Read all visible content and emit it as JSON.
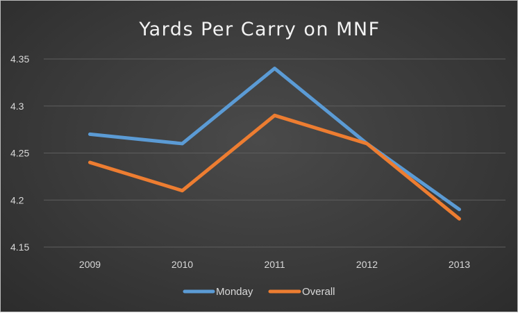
{
  "chart_data": {
    "type": "line",
    "title": "Yards Per Carry on MNF",
    "xlabel": "",
    "ylabel": "",
    "categories": [
      "2009",
      "2010",
      "2011",
      "2012",
      "2013"
    ],
    "yticks": [
      "4.15",
      "4.2",
      "4.25",
      "4.3",
      "4.35"
    ],
    "ylim": [
      4.15,
      4.35
    ],
    "grid": true,
    "legend_position": "bottom",
    "series": [
      {
        "name": "Monday",
        "color": "#5b9bd5",
        "values": [
          4.27,
          4.26,
          4.34,
          4.26,
          4.19
        ]
      },
      {
        "name": "Overall",
        "color": "#ed7d31",
        "values": [
          4.24,
          4.21,
          4.29,
          4.26,
          4.18
        ]
      }
    ]
  }
}
